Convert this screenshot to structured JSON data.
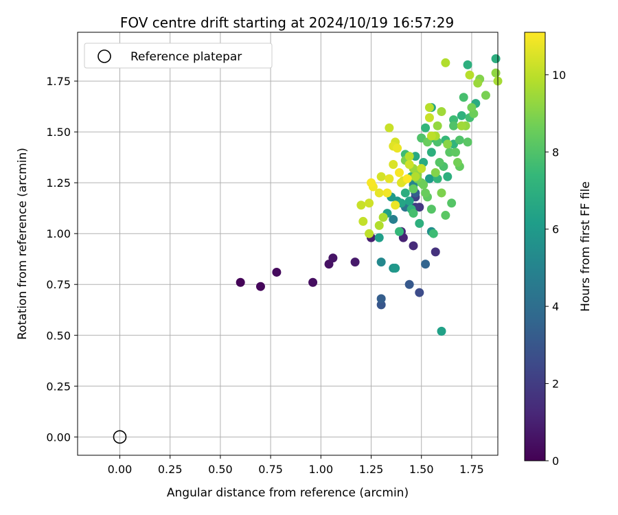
{
  "chart_data": {
    "type": "scatter",
    "title": "FOV centre drift starting at 2024/10/19 16:57:29",
    "xlabel": "Angular distance from reference (arcmin)",
    "ylabel": "Rotation from reference (arcmin)",
    "xlim": [
      -0.21,
      1.88
    ],
    "ylim": [
      -0.09,
      1.99
    ],
    "xticks": [
      "0.00",
      "0.25",
      "0.50",
      "0.75",
      "1.00",
      "1.25",
      "1.50",
      "1.75"
    ],
    "xtick_values": [
      0,
      0.25,
      0.5,
      0.75,
      1.0,
      1.25,
      1.5,
      1.75
    ],
    "yticks": [
      "0.00",
      "0.25",
      "0.50",
      "0.75",
      "1.00",
      "1.25",
      "1.50",
      "1.75"
    ],
    "ytick_values": [
      0,
      0.25,
      0.5,
      0.75,
      1.0,
      1.25,
      1.5,
      1.75
    ],
    "grid": true,
    "legend": {
      "placement": "upper-left",
      "entries": [
        "Reference platepar"
      ]
    },
    "reference_point": {
      "x": 0.0,
      "y": 0.0
    },
    "colorbar": {
      "label": "Hours from first FF file",
      "colormap": "viridis",
      "range": [
        0,
        11.1
      ],
      "ticks": [
        "0",
        "2",
        "4",
        "6",
        "8",
        "10"
      ],
      "tick_values": [
        0,
        2,
        4,
        6,
        8,
        10
      ],
      "colors": [
        "#440154",
        "#482878",
        "#3e4989",
        "#31688e",
        "#26828e",
        "#1f9e89",
        "#35b779",
        "#6ece58",
        "#b5de2b",
        "#fde725"
      ]
    },
    "series": [
      {
        "points": [
          [
            0.6,
            0.76,
            0.1
          ],
          [
            0.7,
            0.74,
            0.2
          ],
          [
            0.78,
            0.81,
            0.3
          ],
          [
            0.96,
            0.76,
            0.4
          ],
          [
            1.04,
            0.85,
            0.5
          ],
          [
            1.06,
            0.88,
            0.6
          ],
          [
            1.17,
            0.86,
            0.8
          ],
          [
            1.25,
            0.98,
            1.0
          ],
          [
            1.41,
            0.98,
            1.1
          ],
          [
            1.4,
            1.01,
            1.2
          ],
          [
            1.46,
            0.94,
            1.4
          ],
          [
            1.57,
            0.91,
            1.6
          ],
          [
            1.49,
            1.13,
            1.8
          ],
          [
            1.47,
            1.13,
            2.0
          ],
          [
            1.47,
            1.18,
            2.2
          ],
          [
            1.49,
            0.71,
            2.6
          ],
          [
            1.3,
            0.65,
            3.0
          ],
          [
            1.3,
            0.68,
            3.3
          ],
          [
            1.44,
            0.75,
            3.1
          ],
          [
            1.52,
            0.85,
            3.6
          ],
          [
            1.47,
            1.2,
            3.4
          ],
          [
            1.42,
            1.13,
            4.3
          ],
          [
            1.36,
            1.07,
            4.8
          ],
          [
            1.46,
            1.24,
            5.0
          ],
          [
            1.55,
            1.01,
            5.5
          ],
          [
            1.3,
            0.86,
            5.2
          ],
          [
            1.36,
            0.83,
            5.7
          ],
          [
            1.37,
            0.83,
            5.9
          ],
          [
            1.38,
            1.16,
            6.0
          ],
          [
            1.29,
            0.98,
            6.2
          ],
          [
            1.33,
            1.1,
            6.3
          ],
          [
            1.35,
            1.18,
            6.0
          ],
          [
            1.44,
            1.16,
            6.4
          ],
          [
            1.6,
            0.52,
            6.3
          ],
          [
            1.54,
            1.27,
            6.1
          ],
          [
            1.55,
            1.62,
            6.6
          ],
          [
            1.5,
            1.47,
            6.5
          ],
          [
            1.87,
            1.86,
            6.9
          ],
          [
            1.73,
            1.83,
            7.0
          ],
          [
            1.77,
            1.64,
            6.8
          ],
          [
            1.66,
            1.44,
            7.2
          ],
          [
            1.7,
            1.58,
            7.1
          ],
          [
            1.58,
            1.27,
            7.3
          ],
          [
            1.56,
            1.47,
            7.5
          ],
          [
            1.63,
            1.28,
            7.0
          ],
          [
            1.74,
            1.57,
            7.7
          ],
          [
            1.62,
            1.46,
            7.4
          ],
          [
            1.56,
            1.0,
            7.6
          ],
          [
            1.39,
            1.01,
            7.4
          ],
          [
            1.46,
            1.1,
            7.8
          ],
          [
            1.52,
            1.52,
            7.3
          ],
          [
            1.42,
            1.39,
            7.6
          ],
          [
            1.58,
            1.45,
            7.9
          ],
          [
            1.69,
            1.46,
            8.0
          ],
          [
            1.71,
            1.67,
            7.8
          ],
          [
            1.65,
            1.15,
            8.1
          ],
          [
            1.62,
            1.09,
            8.2
          ],
          [
            1.55,
            1.12,
            8.1
          ],
          [
            1.64,
            1.4,
            8.2
          ],
          [
            1.66,
            1.53,
            8.0
          ],
          [
            1.67,
            1.4,
            8.3
          ],
          [
            1.69,
            1.33,
            8.4
          ],
          [
            1.73,
            1.45,
            8.2
          ],
          [
            1.53,
            1.18,
            8.3
          ],
          [
            1.5,
            1.25,
            8.6
          ],
          [
            1.48,
            1.27,
            8.8
          ],
          [
            1.42,
            1.36,
            8.9
          ],
          [
            1.52,
            1.2,
            8.5
          ],
          [
            1.6,
            1.2,
            8.9
          ],
          [
            1.57,
            1.3,
            9.0
          ],
          [
            1.63,
            1.44,
            9.1
          ],
          [
            1.68,
            1.35,
            8.7
          ],
          [
            1.75,
            1.62,
            8.7
          ],
          [
            1.76,
            1.59,
            8.6
          ],
          [
            1.79,
            1.76,
            9.0
          ],
          [
            1.82,
            1.68,
            8.8
          ],
          [
            1.78,
            1.74,
            9.4
          ],
          [
            1.87,
            1.79,
            9.2
          ],
          [
            1.88,
            1.75,
            9.6
          ],
          [
            1.74,
            1.78,
            9.9
          ],
          [
            1.62,
            1.84,
            9.8
          ],
          [
            1.6,
            1.6,
            9.5
          ],
          [
            1.58,
            1.53,
            9.3
          ],
          [
            1.55,
            1.48,
            10.0
          ],
          [
            1.54,
            1.62,
            9.9
          ],
          [
            1.54,
            1.57,
            10.2
          ],
          [
            1.5,
            1.32,
            10.1
          ],
          [
            1.47,
            1.28,
            9.8
          ],
          [
            1.44,
            1.34,
            10.3
          ],
          [
            1.41,
            1.26,
            10.5
          ],
          [
            1.4,
            1.25,
            10.6
          ],
          [
            1.37,
            1.14,
            10.8
          ],
          [
            1.34,
            1.27,
            10.7
          ],
          [
            1.33,
            1.2,
            10.9
          ],
          [
            1.3,
            1.28,
            10.4
          ],
          [
            1.29,
            1.2,
            10.7
          ],
          [
            1.25,
            1.25,
            11.0
          ],
          [
            1.26,
            1.23,
            10.9
          ],
          [
            1.24,
            1.15,
            10.3
          ],
          [
            1.2,
            1.14,
            10.2
          ],
          [
            1.21,
            1.06,
            10.1
          ],
          [
            1.24,
            1.0,
            10.0
          ],
          [
            1.29,
            1.04,
            9.8
          ],
          [
            1.31,
            1.08,
            9.7
          ],
          [
            1.34,
            1.52,
            10.2
          ],
          [
            1.37,
            1.45,
            10.4
          ],
          [
            1.36,
            1.43,
            10.6
          ],
          [
            1.38,
            1.42,
            10.8
          ],
          [
            1.39,
            1.3,
            11.0
          ],
          [
            1.43,
            1.27,
            11.1
          ],
          [
            1.36,
            1.34,
            10.5
          ],
          [
            1.44,
            1.38,
            9.9
          ],
          [
            1.46,
            1.22,
            8.4
          ],
          [
            1.48,
            1.29,
            9.2
          ],
          [
            1.51,
            1.24,
            8.6
          ],
          [
            1.59,
            1.35,
            8.1
          ],
          [
            1.61,
            1.33,
            7.9
          ],
          [
            1.66,
            1.56,
            7.6
          ],
          [
            1.72,
            1.53,
            9.3
          ],
          [
            1.7,
            1.53,
            9.5
          ],
          [
            1.53,
            1.45,
            8.5
          ],
          [
            1.57,
            1.48,
            9.7
          ],
          [
            1.55,
            1.4,
            7.0
          ],
          [
            1.51,
            1.35,
            6.8
          ],
          [
            1.47,
            1.38,
            6.7
          ],
          [
            1.45,
            1.28,
            7.2
          ],
          [
            1.42,
            1.2,
            6.9
          ],
          [
            1.4,
            1.15,
            6.5
          ],
          [
            1.49,
            1.05,
            7.0
          ],
          [
            1.45,
            1.12,
            7.2
          ],
          [
            1.5,
            1.47,
            8.0
          ],
          [
            1.46,
            1.32,
            9.4
          ]
        ]
      }
    ]
  }
}
